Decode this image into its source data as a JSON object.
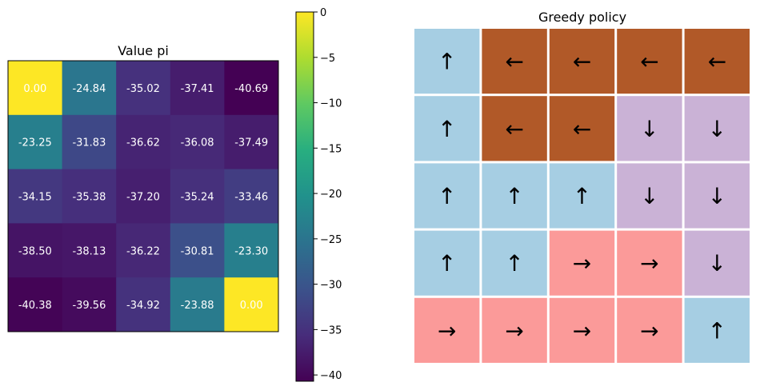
{
  "chart_data": [
    {
      "type": "heatmap",
      "title": "Value pi",
      "colormap": "viridis",
      "vmin": -40.69,
      "vmax": 0.0,
      "colorbar_ticks": [
        "0",
        "−5",
        "−10",
        "−15",
        "−20",
        "−25",
        "−30",
        "−35",
        "−40"
      ],
      "colorbar_tick_values": [
        0,
        -5,
        -10,
        -15,
        -20,
        -25,
        -30,
        -35,
        -40
      ],
      "values": [
        [
          0.0,
          -24.84,
          -35.02,
          -37.41,
          -40.69
        ],
        [
          -23.25,
          -31.83,
          -36.62,
          -36.08,
          -37.49
        ],
        [
          -34.15,
          -35.38,
          -37.2,
          -35.24,
          -33.46
        ],
        [
          -38.5,
          -38.13,
          -36.22,
          -30.81,
          -23.3
        ],
        [
          -40.38,
          -39.56,
          -34.92,
          -23.88,
          0.0
        ]
      ],
      "labels": [
        [
          "0.00",
          "-24.84",
          "-35.02",
          "-37.41",
          "-40.69"
        ],
        [
          "-23.25",
          "-31.83",
          "-36.62",
          "-36.08",
          "-37.49"
        ],
        [
          "-34.15",
          "-35.38",
          "-37.20",
          "-35.24",
          "-33.46"
        ],
        [
          "-38.50",
          "-38.13",
          "-36.22",
          "-30.81",
          "-23.30"
        ],
        [
          "-40.38",
          "-39.56",
          "-34.92",
          "-23.88",
          "0.00"
        ]
      ]
    },
    {
      "type": "heatmap",
      "title": "Greedy policy",
      "arrow_colors": {
        "up": "#a6cee3",
        "left": "#b15928",
        "down": "#cab2d6",
        "right": "#fb9a99"
      },
      "arrow_glyphs": {
        "up": "↑",
        "left": "←",
        "down": "↓",
        "right": "→"
      },
      "actions": [
        [
          "up",
          "left",
          "left",
          "left",
          "left"
        ],
        [
          "up",
          "left",
          "left",
          "down",
          "down"
        ],
        [
          "up",
          "up",
          "up",
          "down",
          "down"
        ],
        [
          "up",
          "up",
          "right",
          "right",
          "down"
        ],
        [
          "right",
          "right",
          "right",
          "right",
          "up"
        ]
      ]
    }
  ]
}
